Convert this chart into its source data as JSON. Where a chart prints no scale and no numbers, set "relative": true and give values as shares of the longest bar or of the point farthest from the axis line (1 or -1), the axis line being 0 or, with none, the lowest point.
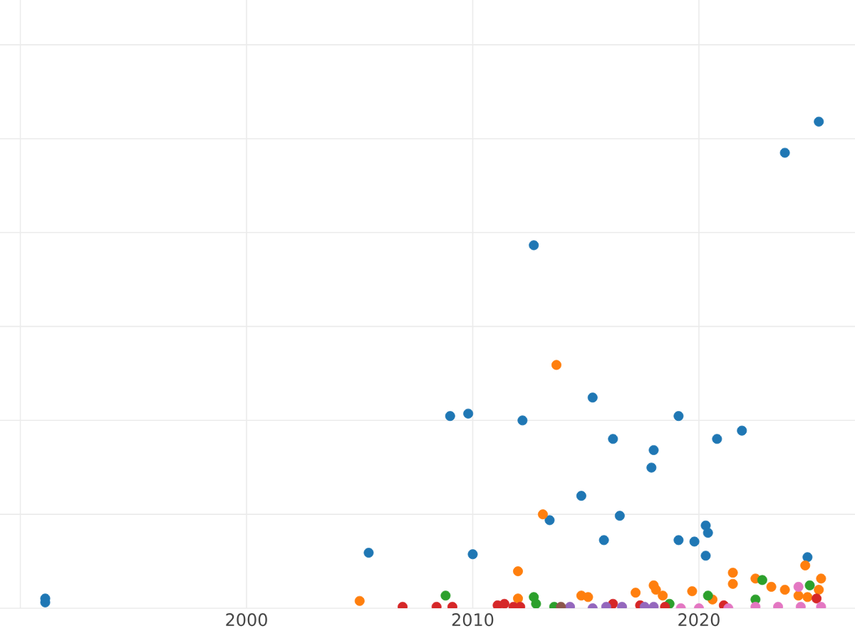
{
  "chart_data": {
    "type": "scatter",
    "relative": true,
    "grid": true,
    "marker": "circle",
    "tick_labels": "x",
    "xlim": [
      1989.1,
      2026.9
    ],
    "xticks": [
      {
        "value": 1990,
        "label": null
      },
      2000,
      2010,
      2020
    ],
    "series": [
      {
        "color": "#1f77b4",
        "x": [
          1991.1,
          1991.1,
          2005.4,
          2009.0,
          2009.8,
          2010.0,
          2012.2,
          2012.7,
          2013.4,
          2015.3,
          2014.8,
          2015.8,
          2016.2,
          2016.5,
          2018.0,
          2017.9,
          2019.1,
          2019.1,
          2019.8,
          2020.3,
          2020.4,
          2020.3,
          2020.8,
          2021.9,
          2023.8,
          2025.3,
          2024.8
        ],
        "values": [
          0.02,
          0.012,
          0.114,
          0.395,
          0.4,
          0.111,
          0.386,
          0.746,
          0.181,
          0.433,
          0.231,
          0.14,
          0.348,
          0.19,
          0.325,
          0.289,
          0.395,
          0.14,
          0.137,
          0.17,
          0.155,
          0.108,
          0.348,
          0.365,
          0.936,
          1.0,
          0.105
        ]
      },
      {
        "color": "#ff7f0e",
        "x": [
          2005.0,
          2013.7,
          2013.1,
          2012.0,
          2012.0,
          2014.8,
          2015.1,
          2017.2,
          2018.0,
          2018.1,
          2018.4,
          2019.7,
          2021.5,
          2021.5,
          2022.5,
          2023.2,
          2023.8,
          2024.7,
          2025.4,
          2025.3,
          2024.8,
          2020.6,
          2024.4
        ],
        "values": [
          0.015,
          0.5,
          0.193,
          0.076,
          0.02,
          0.026,
          0.023,
          0.032,
          0.047,
          0.038,
          0.026,
          0.035,
          0.073,
          0.05,
          0.061,
          0.044,
          0.038,
          0.088,
          0.061,
          0.038,
          0.023,
          0.018,
          0.026
        ]
      },
      {
        "color": "#2ca02c",
        "x": [
          2008.8,
          2012.7,
          2012.8,
          2013.6,
          2020.4,
          2022.8,
          2024.9,
          2022.5,
          2018.7
        ],
        "values": [
          0.026,
          0.023,
          0.009,
          0.003,
          0.026,
          0.058,
          0.047,
          0.018,
          0.009
        ]
      },
      {
        "color": "#d62728",
        "x": [
          2006.9,
          2008.4,
          2009.1,
          2011.1,
          2011.4,
          2011.8,
          2012.1,
          2016.2,
          2017.4,
          2018.5,
          2021.1,
          2025.2
        ],
        "values": [
          0.003,
          0.003,
          0.003,
          0.006,
          0.009,
          0.003,
          0.003,
          0.009,
          0.006,
          0.003,
          0.006,
          0.02
        ]
      },
      {
        "color": "#9467bd",
        "x": [
          2014.3,
          2015.3,
          2015.9,
          2016.6,
          2017.6,
          2018.0
        ],
        "values": [
          0.003,
          0.0,
          0.003,
          0.003,
          0.003,
          0.003
        ]
      },
      {
        "color": "#8c564b",
        "x": [
          2013.9
        ],
        "values": [
          0.003
        ]
      },
      {
        "color": "#e377c2",
        "x": [
          2019.2,
          2020.0,
          2021.3,
          2022.5,
          2023.5,
          2024.4,
          2024.5,
          2025.4
        ],
        "values": [
          0.0,
          0.0,
          0.0,
          0.003,
          0.003,
          0.044,
          0.003,
          0.003
        ]
      }
    ]
  }
}
